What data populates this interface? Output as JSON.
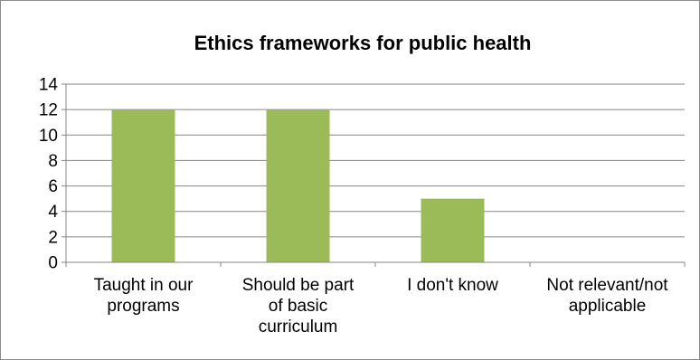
{
  "chart_data": {
    "type": "bar",
    "title": "Ethics frameworks for public health",
    "xlabel": "",
    "ylabel": "",
    "categories": [
      [
        "Taught in our",
        "programs"
      ],
      [
        "Should be part",
        "of basic",
        "curriculum"
      ],
      [
        "I don't know"
      ],
      [
        "Not relevant/not",
        "applicable"
      ]
    ],
    "values": [
      12,
      12,
      5,
      0
    ],
    "ylim": [
      0,
      14
    ],
    "yticks": [
      "0",
      "2",
      "4",
      "6",
      "8",
      "10",
      "12",
      "14"
    ],
    "grid": true,
    "legend": "none",
    "bar_color": "#9bbb59",
    "grid_color": "#868686"
  }
}
